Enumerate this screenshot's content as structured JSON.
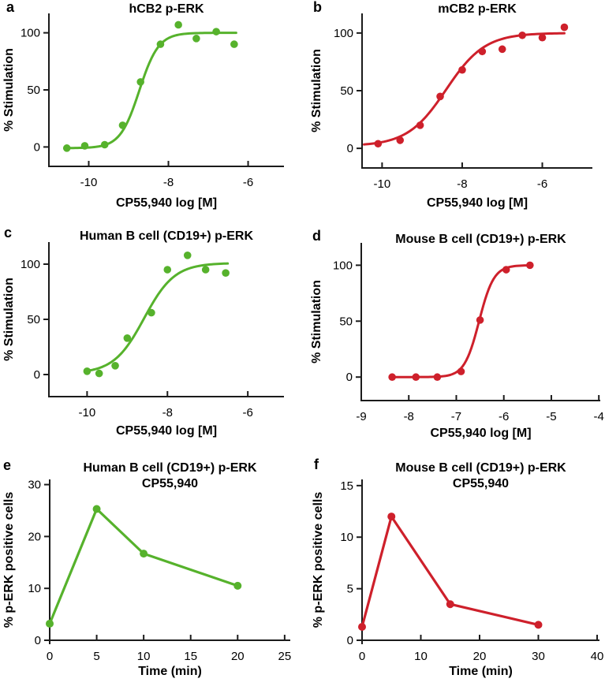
{
  "figure": {
    "background": "#ffffff",
    "colors": {
      "green": "#56B22C",
      "red": "#CE202B",
      "axis": "#1b1b1b"
    }
  },
  "chart_data": [
    {
      "panel": "a",
      "type": "scatter",
      "title": "hCB2 p-ERK",
      "subtitle": "",
      "xlabel": "CP55,940 log [M]",
      "ylabel": "% Stimulation",
      "color": "green",
      "x_ticks": [
        -10,
        -8,
        -6
      ],
      "y_ticks": [
        0,
        50,
        100
      ],
      "xlim": [
        -11,
        -5.1
      ],
      "ylim": [
        -17,
        117
      ],
      "points": [
        [
          -10.55,
          -1
        ],
        [
          -10.1,
          1
        ],
        [
          -9.6,
          2
        ],
        [
          -9.15,
          19
        ],
        [
          -8.7,
          57
        ],
        [
          -8.2,
          90
        ],
        [
          -7.75,
          107
        ],
        [
          -7.3,
          95
        ],
        [
          -6.8,
          101
        ],
        [
          -6.35,
          90
        ]
      ],
      "fit": {
        "bottom": -1,
        "top": 100,
        "logec50": -8.73,
        "hill": 1.8,
        "from": -10.55,
        "to": -6.3
      }
    },
    {
      "panel": "b",
      "type": "scatter",
      "title": "mCB2 p-ERK",
      "subtitle": "",
      "xlabel": "CP55,940 log [M]",
      "ylabel": "% Stimulation",
      "color": "red",
      "x_ticks": [
        -10,
        -8,
        -6
      ],
      "y_ticks": [
        0,
        50,
        100
      ],
      "xlim": [
        -10.5,
        -4.75
      ],
      "ylim": [
        -17,
        117
      ],
      "points": [
        [
          -10.1,
          4
        ],
        [
          -9.55,
          7
        ],
        [
          -9.05,
          20
        ],
        [
          -8.55,
          45
        ],
        [
          -8.0,
          68
        ],
        [
          -7.5,
          84
        ],
        [
          -7.0,
          86
        ],
        [
          -6.5,
          98
        ],
        [
          -6.0,
          96
        ],
        [
          -5.45,
          105
        ]
      ],
      "fit": {
        "bottom": 2,
        "top": 100,
        "logec50": -8.4,
        "hill": 0.9,
        "from": -10.45,
        "to": -5.45
      }
    },
    {
      "panel": "c",
      "type": "scatter",
      "title": "Human B cell (CD19+) p-ERK",
      "subtitle": "",
      "xlabel": "CP55,940 log [M]",
      "ylabel": "% Stimulation",
      "color": "green",
      "x_ticks": [
        -10,
        -8,
        -6
      ],
      "y_ticks": [
        0,
        50,
        100
      ],
      "xlim": [
        -10.95,
        -5.1
      ],
      "ylim": [
        -20,
        120
      ],
      "points": [
        [
          -10.0,
          3
        ],
        [
          -9.7,
          1
        ],
        [
          -9.3,
          8
        ],
        [
          -9.0,
          33
        ],
        [
          -8.4,
          56
        ],
        [
          -8.0,
          95
        ],
        [
          -7.5,
          108
        ],
        [
          -7.05,
          95
        ],
        [
          -6.55,
          92
        ]
      ],
      "fit": {
        "bottom": 1,
        "top": 101,
        "logec50": -8.58,
        "hill": 1.15,
        "from": -10.05,
        "to": -6.5
      }
    },
    {
      "panel": "d",
      "type": "scatter",
      "title": "Mouse B cell (CD19+) p-ERK",
      "subtitle": "",
      "xlabel": "CP55,940 log [M]",
      "ylabel": "% Stimulation",
      "color": "red",
      "x_ticks": [
        -9,
        -8,
        -7,
        -6,
        -5,
        -4
      ],
      "y_ticks": [
        0,
        50,
        100
      ],
      "xlim": [
        -9,
        -3.97
      ],
      "ylim": [
        -21,
        120
      ],
      "points": [
        [
          -8.35,
          0
        ],
        [
          -7.85,
          0
        ],
        [
          -7.4,
          0
        ],
        [
          -6.9,
          5
        ],
        [
          -6.5,
          51
        ],
        [
          -5.95,
          96
        ],
        [
          -5.45,
          100
        ]
      ],
      "fit": {
        "bottom": 0,
        "top": 100,
        "logec50": -6.52,
        "hill": 2.8,
        "from": -8.35,
        "to": -5.45
      }
    },
    {
      "panel": "e",
      "type": "line",
      "title": "Human B cell (CD19+) p-ERK",
      "subtitle": "CP55,940",
      "xlabel": "Time (min)",
      "ylabel": "% p-ERK positive cells",
      "color": "green",
      "x_ticks": [
        0,
        5,
        10,
        15,
        20,
        25
      ],
      "y_ticks": [
        0,
        10,
        20,
        30
      ],
      "xlim": [
        0,
        25.6
      ],
      "ylim": [
        0,
        31
      ],
      "points": [
        [
          0,
          3.2
        ],
        [
          5,
          25.3
        ],
        [
          10,
          16.7
        ],
        [
          20,
          10.5
        ]
      ]
    },
    {
      "panel": "f",
      "type": "line",
      "title": "Mouse B cell (CD19+) p-ERK",
      "subtitle": "CP55,940",
      "xlabel": "Time (min)",
      "ylabel": "% p-ERK positive cells",
      "color": "red",
      "x_ticks": [
        0,
        10,
        20,
        30,
        40
      ],
      "y_ticks": [
        0,
        5,
        10,
        15
      ],
      "xlim": [
        0,
        40.4
      ],
      "ylim": [
        0,
        15.6
      ],
      "points": [
        [
          0,
          1.3
        ],
        [
          5,
          12
        ],
        [
          15,
          3.5
        ],
        [
          30,
          1.5
        ]
      ]
    }
  ]
}
